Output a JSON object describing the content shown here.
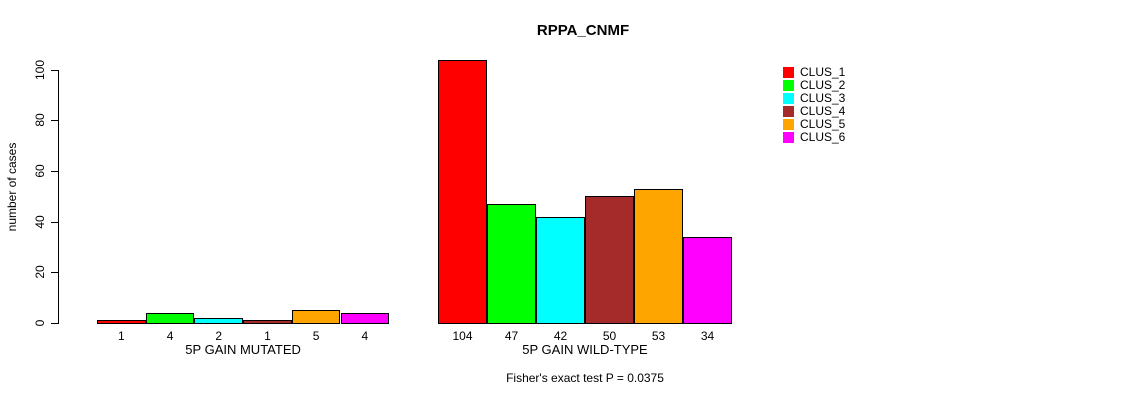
{
  "title": "RPPA_CNMF",
  "ylabel": "number of cases",
  "footer": "Fisher's exact test P = 0.0375",
  "chart_data": {
    "type": "bar",
    "title": "RPPA_CNMF",
    "xlabel": "",
    "ylabel": "number of cases",
    "ylim": [
      0,
      100
    ],
    "yticks": [
      0,
      20,
      40,
      60,
      80,
      100
    ],
    "grid": false,
    "legend_position": "right",
    "categories": [
      "5P GAIN MUTATED",
      "5P GAIN WILD-TYPE"
    ],
    "series": [
      {
        "name": "CLUS_1",
        "color": "#FF0000",
        "values": [
          1,
          104
        ]
      },
      {
        "name": "CLUS_2",
        "color": "#00FF00",
        "values": [
          4,
          47
        ]
      },
      {
        "name": "CLUS_3",
        "color": "#00FFFF",
        "values": [
          2,
          42
        ]
      },
      {
        "name": "CLUS_4",
        "color": "#A52A2A",
        "values": [
          1,
          50
        ]
      },
      {
        "name": "CLUS_5",
        "color": "#FFA500",
        "values": [
          5,
          53
        ]
      },
      {
        "name": "CLUS_6",
        "color": "#FF00FF",
        "values": [
          4,
          34
        ]
      }
    ],
    "bar_value_labels_shown": true,
    "annotation": "Fisher's exact test P = 0.0375"
  }
}
